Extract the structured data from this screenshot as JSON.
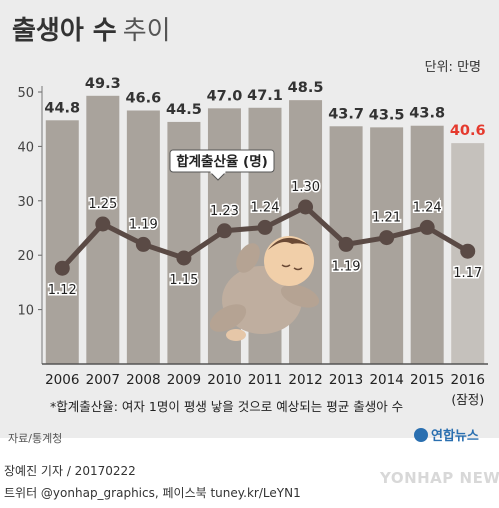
{
  "title": {
    "main": "출생아 수",
    "suffix": "추이"
  },
  "unit_label": "단위: 만명",
  "series_label": "합계출산율 (명)",
  "footnote": "*합계출산율: 여자 1명이 평생 낳을 것으로 예상되는 평균 출생아 수",
  "source": "자료/통계청",
  "logo": "연합뉴스",
  "credits": {
    "line1": "장예진 기자 / 20170222",
    "line2": "트위터 @yonhap_graphics, 페이스북 tuney.kr/LeYN1"
  },
  "watermark": "YONHAP NEWS",
  "colors": {
    "bar": "#a9a39c",
    "bar_last": "#c5c1bc",
    "line": "#5a4a45",
    "highlight": "#e53a2e",
    "label": "#333333"
  },
  "chart_data": {
    "type": "bar",
    "categories": [
      "2006",
      "2007",
      "2008",
      "2009",
      "2010",
      "2011",
      "2012",
      "2013",
      "2014",
      "2015",
      "2016"
    ],
    "category_note": "(잠정)",
    "bar_labels": [
      "44.8",
      "49.3",
      "46.6",
      "44.5",
      "47.0",
      "47.1",
      "48.5",
      "43.7",
      "43.5",
      "43.8",
      "40.6"
    ],
    "series": [
      {
        "name": "출생아 수",
        "values": [
          44.8,
          49.3,
          46.6,
          44.5,
          47.0,
          47.1,
          48.5,
          43.7,
          43.5,
          43.8,
          40.6
        ]
      },
      {
        "name": "합계출산율 (명)",
        "type": "line",
        "values": [
          1.12,
          1.25,
          1.19,
          1.15,
          1.23,
          1.24,
          1.3,
          1.19,
          1.21,
          1.24,
          1.17
        ],
        "labels": [
          "1.12",
          "1.25",
          "1.19",
          "1.15",
          "1.23",
          "1.24",
          "1.30",
          "1.19",
          "1.21",
          "1.24",
          "1.17"
        ]
      }
    ],
    "yticks": [
      "10",
      "20",
      "30",
      "40",
      "50"
    ],
    "ylim": [
      0,
      50
    ],
    "line_scale": [
      1.05,
      1.35
    ],
    "grid": false,
    "highlight_last": true
  }
}
